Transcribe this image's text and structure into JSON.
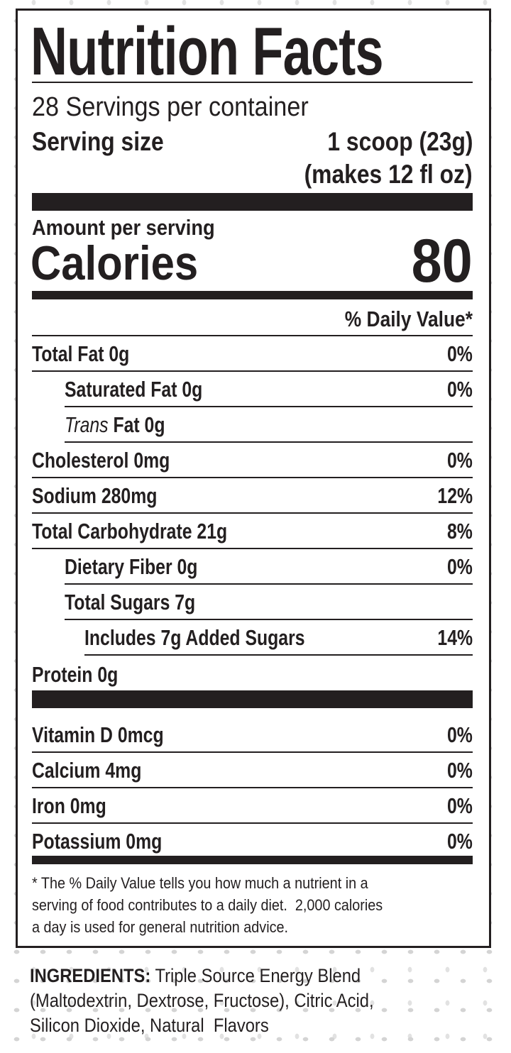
{
  "title": "Nutrition Facts",
  "servings_per_container": "28 Servings per container",
  "serving_size": {
    "label": "Serving size",
    "value": "1 scoop (23g)",
    "note": "(makes 12 fl oz)"
  },
  "amount_per_serving": "Amount per serving",
  "calories": {
    "label": "Calories",
    "value": "80"
  },
  "daily_value_header": "% Daily Value*",
  "nutrients": [
    {
      "name": "Total Fat 0g",
      "dv": "0%"
    },
    {
      "name": "Saturated Fat 0g",
      "dv": "0%"
    },
    {
      "name_italic": "Trans",
      "name": " Fat 0g",
      "dv": ""
    },
    {
      "name": "Cholesterol 0mg",
      "dv": "0%"
    },
    {
      "name": "Sodium 280mg",
      "dv": "12%"
    },
    {
      "name": "Total Carbohydrate 21g",
      "dv": "8%"
    },
    {
      "name": "Dietary Fiber 0g",
      "dv": "0%"
    },
    {
      "name": "Total Sugars 7g",
      "dv": ""
    },
    {
      "name": "Includes 7g Added Sugars",
      "dv": "14%"
    },
    {
      "name": "Protein 0g",
      "dv": ""
    }
  ],
  "vitamins": [
    {
      "name": "Vitamin D 0mcg",
      "dv": "0%"
    },
    {
      "name": "Calcium 4mg",
      "dv": "0%"
    },
    {
      "name": "Iron 0mg",
      "dv": "0%"
    },
    {
      "name": "Potassium 0mg",
      "dv": "0%"
    }
  ],
  "footnote": [
    "* The % Daily Value tells you how much a nutrient in a",
    "serving of food contributes to a daily diet.  2,000 calories",
    "a day is used for general nutrition advice."
  ],
  "ingredients": {
    "label": "INGREDIENTS:",
    "lines": [
      " Triple Source Energy Blend",
      "(Maltodextrin, Dextrose, Fructose), Citric Acid,",
      "Silicon Dioxide, Natural  Flavors"
    ]
  }
}
